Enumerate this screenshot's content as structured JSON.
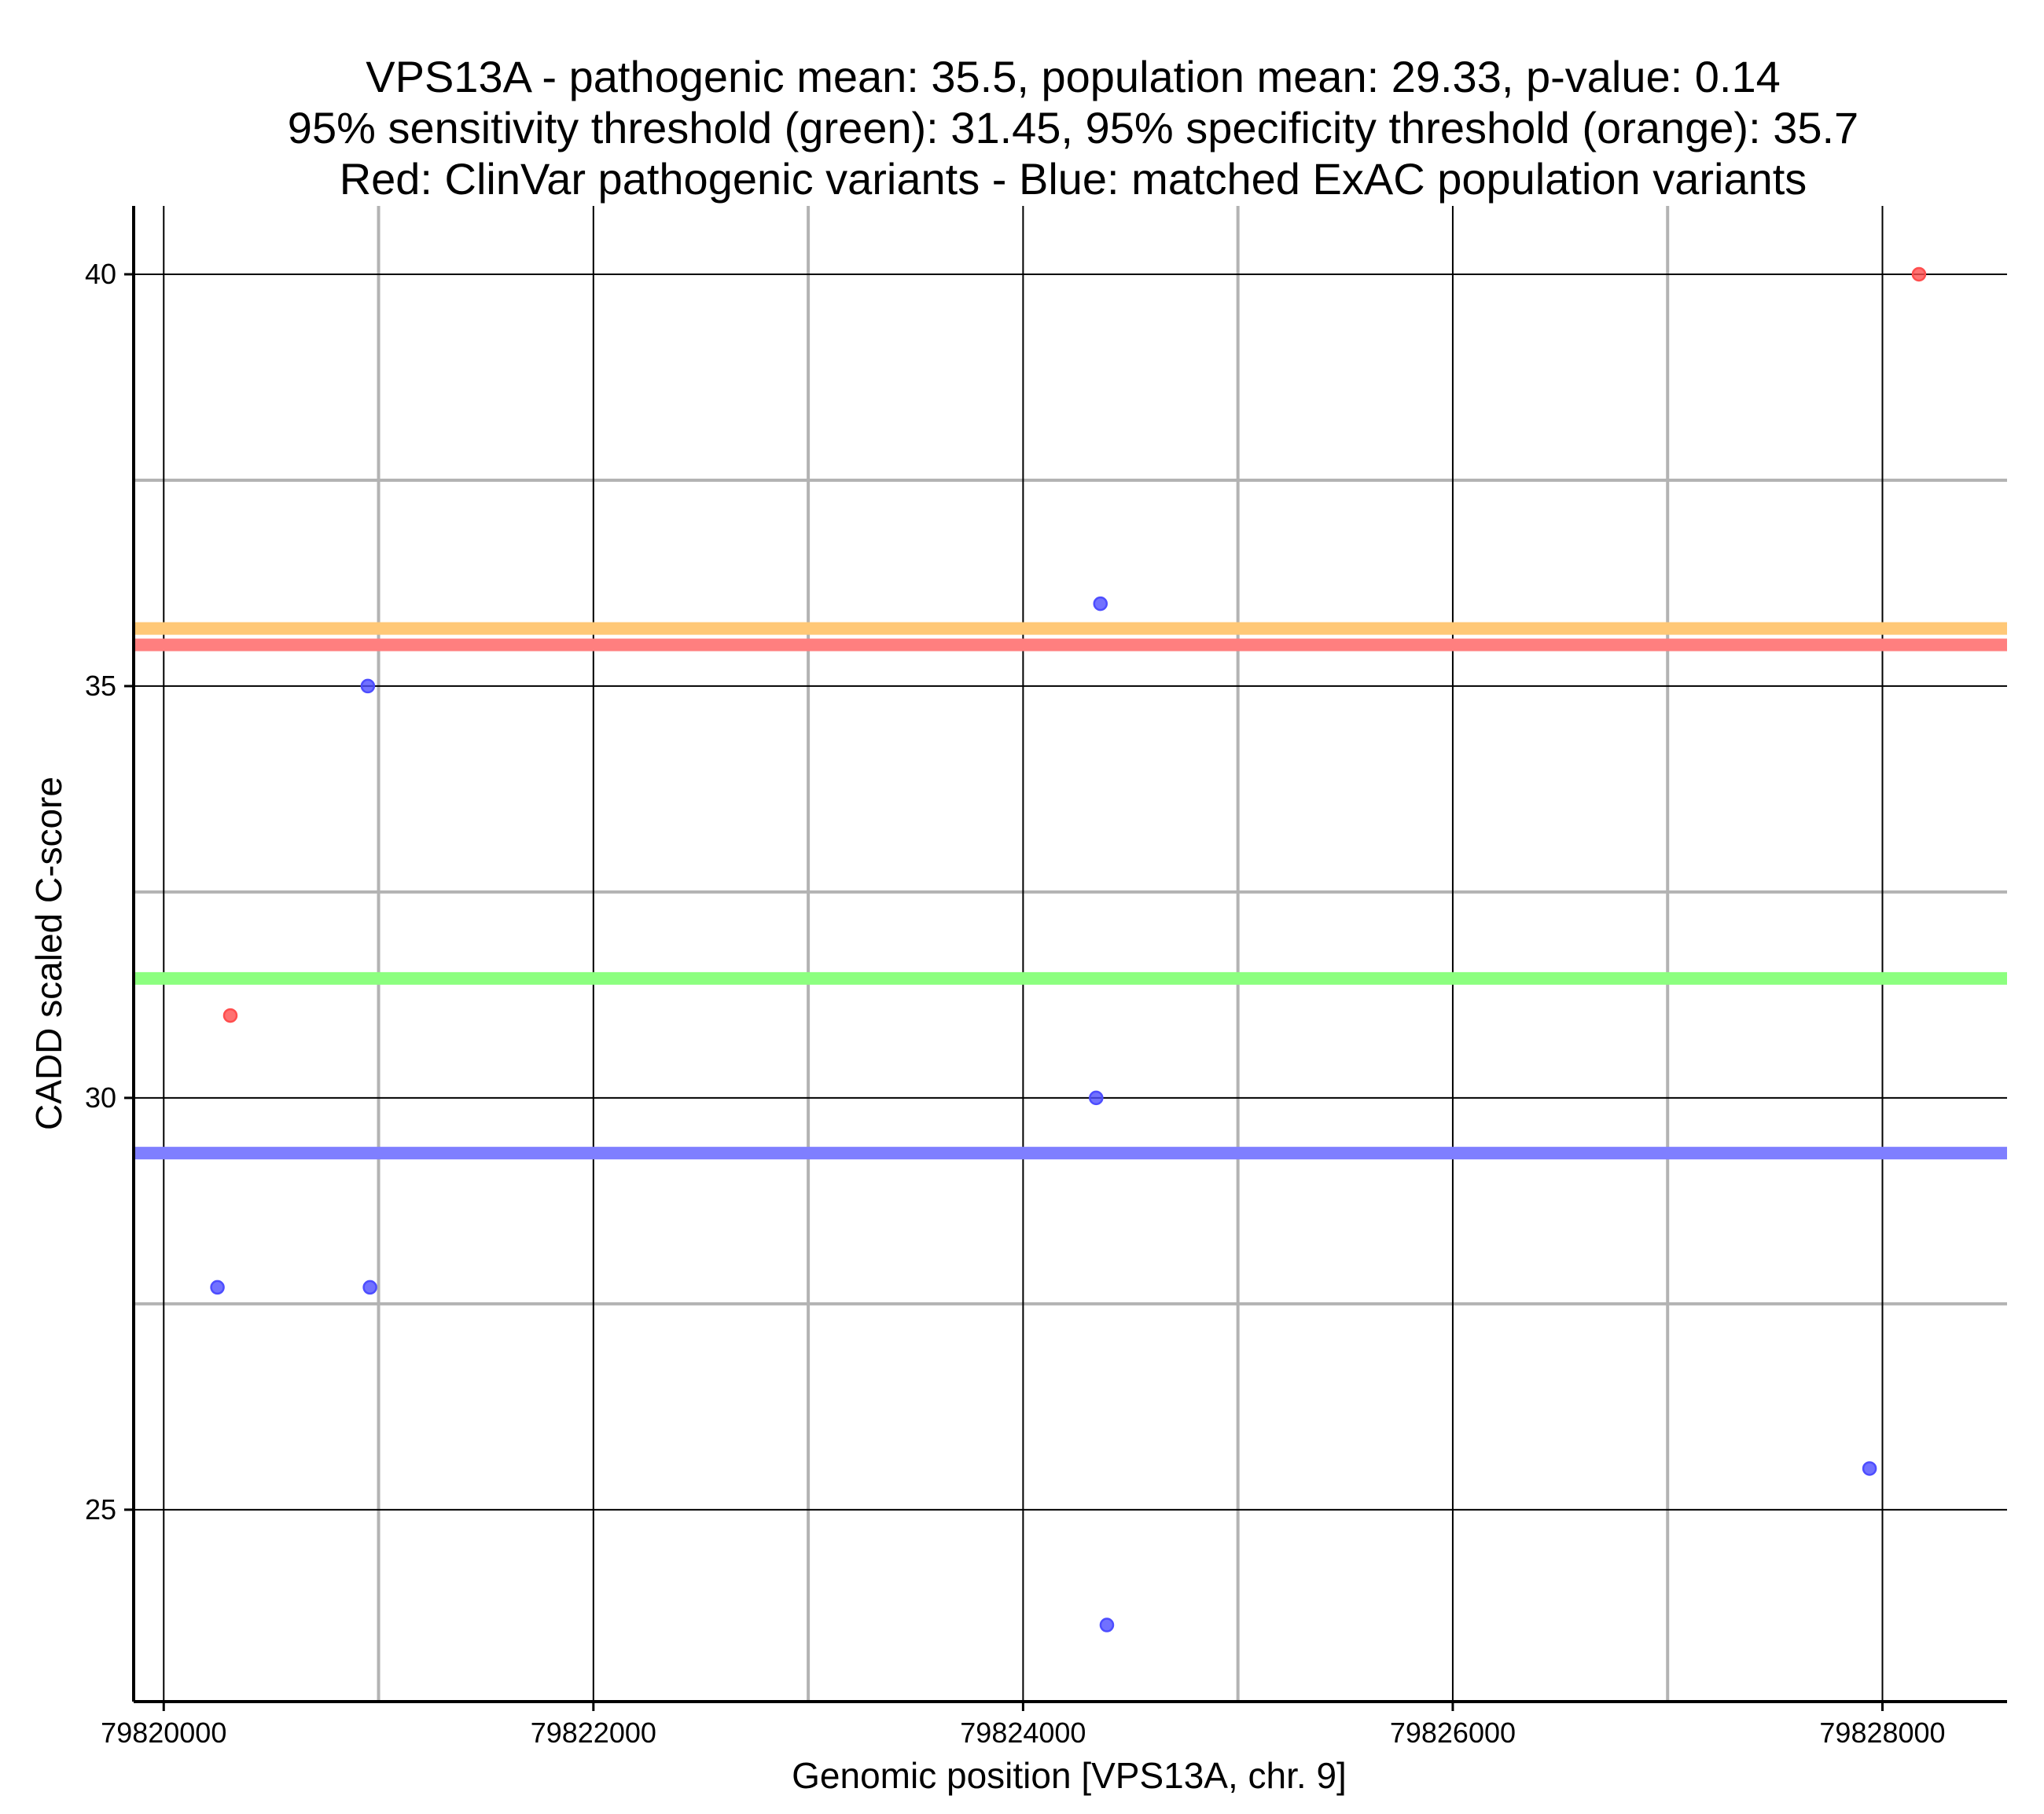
{
  "chart_data": {
    "type": "scatter",
    "title": [
      "VPS13A - pathogenic mean: 35.5, population mean: 29.33, p-value: 0.14",
      "95% sensitivity threshold (green): 31.45, 95% specificity threshold (orange): 35.7",
      "Red: ClinVar pathogenic variants - Blue: matched ExAC population variants"
    ],
    "xlabel": "Genomic position [VPS13A, chr. 9]",
    "ylabel": "CADD scaled C-score",
    "xlim": [
      79819860,
      79828580
    ],
    "ylim": [
      22.67,
      40.83
    ],
    "xticks": [
      79820000,
      79822000,
      79824000,
      79826000,
      79828000
    ],
    "xtick_labels": [
      "79820000",
      "79822000",
      "79824000",
      "79826000",
      "79828000"
    ],
    "yticks": [
      25,
      30,
      35,
      40
    ],
    "ytick_labels": [
      "25",
      "30",
      "35",
      "40"
    ],
    "x_minor_grid": [
      79821000,
      79823000,
      79825000,
      79827000
    ],
    "y_minor_grid": [
      27.5,
      32.5,
      37.5
    ],
    "grid": true,
    "series": [
      {
        "name": "ClinVar pathogenic variants",
        "color": "#ff4d4d",
        "points": [
          {
            "x": 79820310,
            "y": 31.0
          },
          {
            "x": 79828170,
            "y": 40.0
          }
        ]
      },
      {
        "name": "matched ExAC population variants",
        "color": "#4d4dff",
        "points": [
          {
            "x": 79820250,
            "y": 27.7
          },
          {
            "x": 79820950,
            "y": 35.0
          },
          {
            "x": 79820960,
            "y": 27.7
          },
          {
            "x": 79824340,
            "y": 30.0
          },
          {
            "x": 79824360,
            "y": 36.0
          },
          {
            "x": 79824390,
            "y": 23.6
          },
          {
            "x": 79827940,
            "y": 25.5
          }
        ]
      }
    ],
    "threshold_lines": [
      {
        "name": "specificity-threshold",
        "label": "95% specificity threshold",
        "y": 35.7,
        "color": "#ffc877"
      },
      {
        "name": "pathogenic-mean",
        "label": "pathogenic mean",
        "y": 35.5,
        "color": "#ff7f7f"
      },
      {
        "name": "sensitivity-threshold",
        "label": "95% sensitivity threshold",
        "y": 31.45,
        "color": "#8cff7f"
      },
      {
        "name": "population-mean",
        "label": "population mean",
        "y": 29.33,
        "color": "#7f7fff"
      }
    ]
  }
}
